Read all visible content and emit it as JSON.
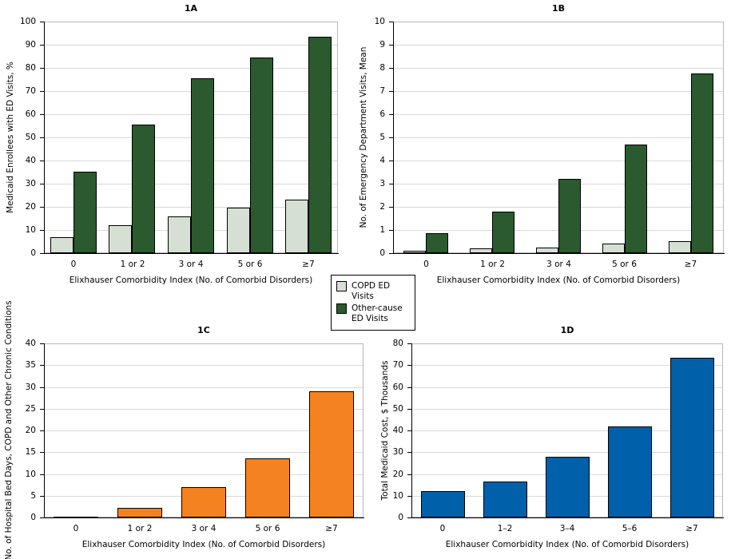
{
  "legend": {
    "items": [
      {
        "label": "COPD ED Visits",
        "color": "#d5dfd4"
      },
      {
        "label": "Other-cause ED Visits",
        "color": "#2a5a2e"
      }
    ]
  },
  "colors": {
    "copd_light_green": "#d5dfd4",
    "other_dark_green": "#2a5a2e",
    "bed_days_orange": "#f58220",
    "cost_blue": "#0060a9",
    "gridline": "#d9d9d9",
    "plot_border": "#b9b9b9",
    "axis": "#000000"
  },
  "chart_data": [
    {
      "id": "1A",
      "type": "bar",
      "title": "1A",
      "ylabel": "Medicaid Enrollees with ED Visits, %",
      "xlabel": "Elixhauser Comorbidity Index (No. of Comorbid Disorders)",
      "categories": [
        "0",
        "1 or 2",
        "3 or 4",
        "5 or 6",
        "≥7"
      ],
      "ylim": [
        0,
        100
      ],
      "ytick_step": 10,
      "grid": true,
      "series": [
        {
          "name": "COPD ED Visits",
          "color": "#d5dfd4",
          "values": [
            7,
            12,
            16,
            19.5,
            23
          ]
        },
        {
          "name": "Other-cause ED Visits",
          "color": "#2a5a2e",
          "values": [
            35,
            55.5,
            75.5,
            84.5,
            93.5
          ]
        }
      ]
    },
    {
      "id": "1B",
      "type": "bar",
      "title": "1B",
      "ylabel": "No. of Emergency Department Visits, Mean",
      "xlabel": "Elixhauser Comorbidity Index (No. of Comorbid Disorders)",
      "categories": [
        "0",
        "1 or 2",
        "3 or 4",
        "5 or 6",
        "≥7"
      ],
      "ylim": [
        0,
        10
      ],
      "ytick_step": 1,
      "grid": true,
      "series": [
        {
          "name": "COPD ED Visits",
          "color": "#d5dfd4",
          "values": [
            0.1,
            0.2,
            0.25,
            0.4,
            0.5
          ]
        },
        {
          "name": "Other-cause ED Visits",
          "color": "#2a5a2e",
          "values": [
            0.85,
            1.8,
            3.2,
            4.7,
            7.75
          ]
        }
      ]
    },
    {
      "id": "1C",
      "type": "bar",
      "title": "1C",
      "ylabel": "No. of Hospital Bed Days, COPD and Other Chronic Conditions",
      "xlabel": "Elixhauser Comorbidity Index (No. of Comorbid Disorders)",
      "categories": [
        "0",
        "1 or 2",
        "3 or 4",
        "5 or 6",
        "≥7"
      ],
      "ylim": [
        0,
        40
      ],
      "ytick_step": 5,
      "grid": true,
      "series": [
        {
          "name": "Hospital Bed Days",
          "color": "#f58220",
          "values": [
            0.2,
            2.2,
            7,
            13.5,
            29
          ]
        }
      ]
    },
    {
      "id": "1D",
      "type": "bar",
      "title": "1D",
      "ylabel": "Total Medicaid Cost, $ Thousands",
      "xlabel": "Elixhauser Comorbidity Index (No. of Comorbid Disorders)",
      "categories": [
        "0",
        "1–2",
        "3–4",
        "5–6",
        "≥7"
      ],
      "ylim": [
        0,
        80
      ],
      "ytick_step": 10,
      "grid": true,
      "series": [
        {
          "name": "Total Medicaid Cost",
          "color": "#0060a9",
          "values": [
            12,
            16.5,
            28,
            42,
            73.5
          ]
        }
      ]
    }
  ]
}
